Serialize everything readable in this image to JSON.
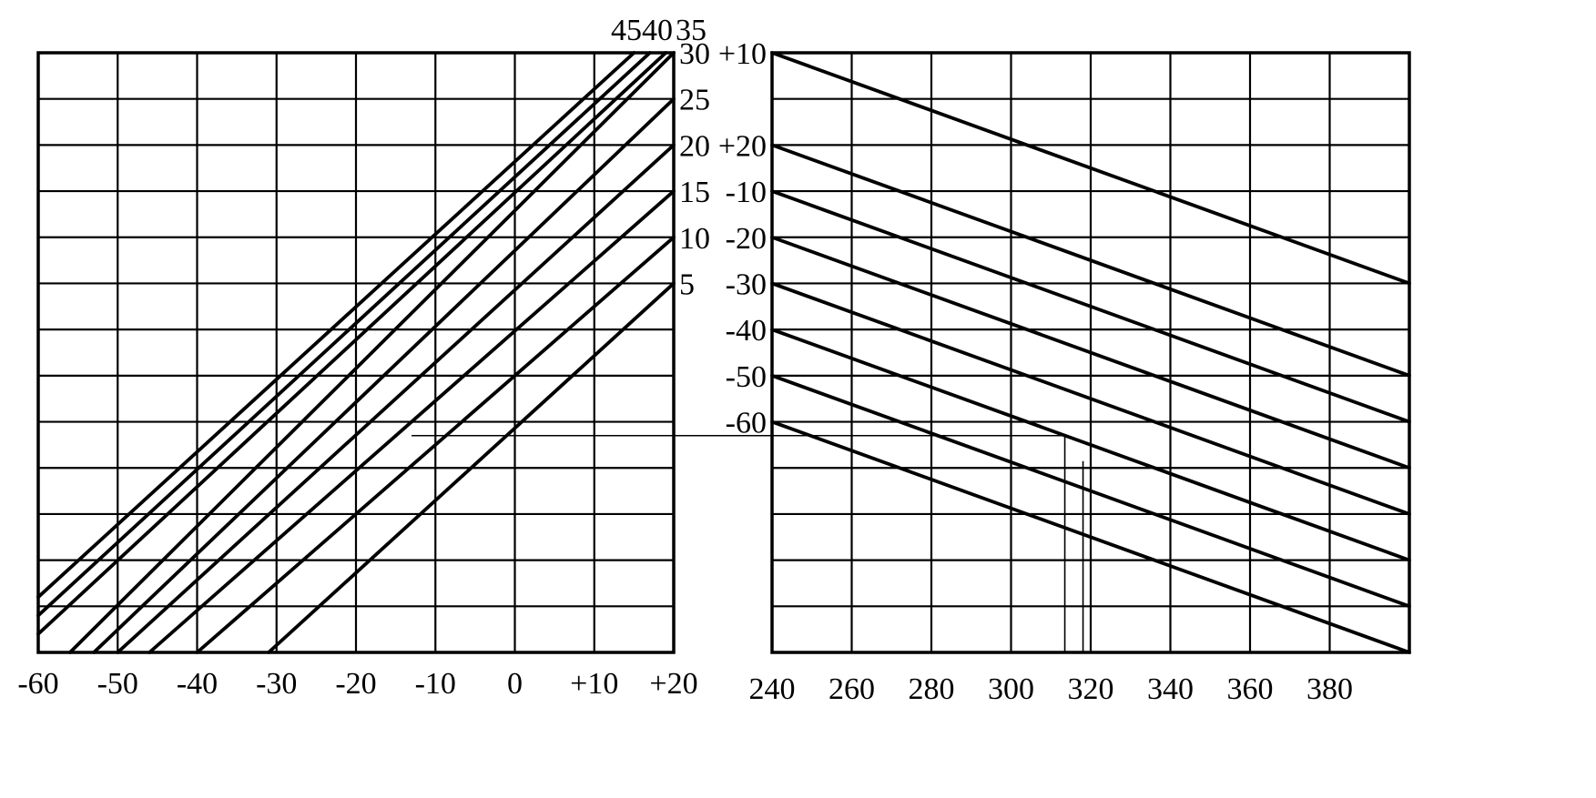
{
  "chart_data": [
    {
      "type": "line",
      "panel": "left",
      "x_tick_labels": [
        "-60",
        "-50",
        "-40",
        "-30",
        "-20",
        "-10",
        "0",
        "+10",
        "+20"
      ],
      "xlim": [
        -60,
        20
      ],
      "ylim": [
        -35,
        30
      ],
      "grid": true,
      "series": [
        {
          "label": "5",
          "x": [
            -31,
            20
          ],
          "y": [
            -35,
            5
          ]
        },
        {
          "label": "10",
          "x": [
            -40,
            20
          ],
          "y": [
            -35,
            10
          ]
        },
        {
          "label": "15",
          "x": [
            -46,
            20
          ],
          "y": [
            -35,
            15
          ]
        },
        {
          "label": "20",
          "x": [
            -50,
            20
          ],
          "y": [
            -35,
            20
          ]
        },
        {
          "label": "25",
          "x": [
            -53,
            20
          ],
          "y": [
            -35,
            25
          ]
        },
        {
          "label": "30",
          "x": [
            -56,
            20
          ],
          "y": [
            -35,
            30
          ]
        },
        {
          "label": "35",
          "x": [
            -60,
            19
          ],
          "y": [
            -33,
            30
          ]
        },
        {
          "label": "40",
          "x": [
            -60,
            17
          ],
          "y": [
            -31,
            30
          ]
        },
        {
          "label": "45",
          "x": [
            -60,
            15
          ],
          "y": [
            -29,
            30
          ]
        }
      ],
      "right_labels": [
        {
          "text": "5",
          "y": 5
        },
        {
          "text": "10",
          "y": 10
        },
        {
          "text": "15",
          "y": 15
        },
        {
          "text": "20",
          "y": 20
        },
        {
          "text": "25",
          "y": 25
        },
        {
          "text": "30",
          "y": 30
        }
      ],
      "top_labels": [
        "45",
        "40",
        "35"
      ]
    },
    {
      "type": "line",
      "panel": "right",
      "x_tick_labels": [
        "240",
        "260",
        "280",
        "300",
        "320",
        "340",
        "360",
        "380"
      ],
      "xlim": [
        240,
        400
      ],
      "ylim": [
        0,
        13
      ],
      "grid": true,
      "series": [
        {
          "label": "+10",
          "x": [
            240,
            400
          ],
          "y": [
            13,
            8
          ]
        },
        {
          "label": "+20",
          "x": [
            240,
            400
          ],
          "y": [
            11,
            6
          ]
        },
        {
          "label": "-10",
          "x": [
            240,
            400
          ],
          "y": [
            10,
            5
          ]
        },
        {
          "label": "-20",
          "x": [
            240,
            400
          ],
          "y": [
            9,
            4
          ]
        },
        {
          "label": "-30",
          "x": [
            240,
            400
          ],
          "y": [
            8,
            3
          ]
        },
        {
          "label": "-40",
          "x": [
            240,
            400
          ],
          "y": [
            7,
            2
          ]
        },
        {
          "label": "-50",
          "x": [
            240,
            400
          ],
          "y": [
            6,
            1
          ]
        },
        {
          "label": "-60",
          "x": [
            240,
            400
          ],
          "y": [
            5,
            0
          ]
        }
      ]
    }
  ],
  "connector": {
    "from_left_x": -13,
    "level_y": -11.5,
    "to_right_x": 313.5
  }
}
